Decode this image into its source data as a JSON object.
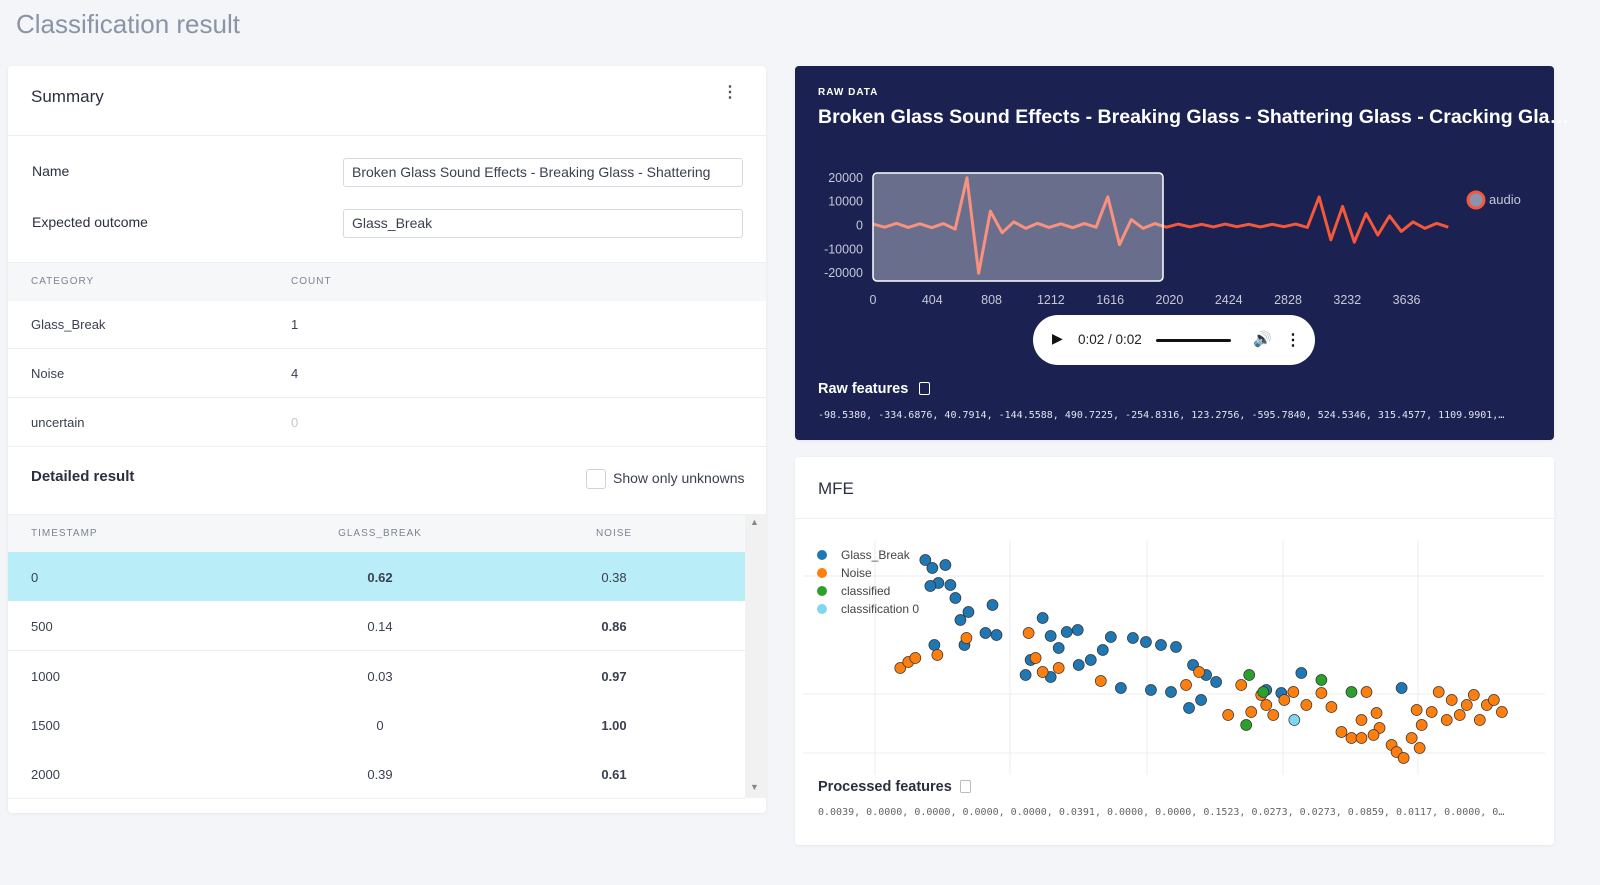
{
  "header": {
    "title": "Classification result"
  },
  "summary": {
    "title": "Summary",
    "fields": [
      {
        "label": "Name",
        "value": "Broken Glass Sound Effects - Breaking Glass - Shattering Glass"
      },
      {
        "label": "Expected outcome",
        "value": "Glass_Break"
      }
    ],
    "category_table": {
      "columns": [
        "CATEGORY",
        "COUNT"
      ],
      "rows": [
        [
          "Glass_Break",
          1
        ],
        [
          "Noise",
          4
        ],
        [
          "uncertain",
          0
        ]
      ]
    }
  },
  "detailed_result": {
    "title": "Detailed result",
    "checkbox_label": "Show only unknowns",
    "columns": [
      "TIMESTAMP",
      "GLASS_BREAK",
      "NOISE"
    ],
    "rows": [
      [
        0,
        "0.62",
        "0.38"
      ],
      [
        500,
        "0.14",
        "0.86"
      ],
      [
        1000,
        "0.03",
        "0.97"
      ],
      [
        1500,
        "0",
        "1.00"
      ],
      [
        2000,
        "0.39",
        "0.61"
      ]
    ]
  },
  "raw_data": {
    "label": "RAW DATA",
    "title": "Broken Glass Sound Effects - Breaking Glass - Shattering Glass - Cracking Gla…",
    "waveform": {
      "type": "line",
      "x": [
        0,
        80,
        160,
        240,
        320,
        400,
        480,
        560,
        640,
        720,
        800,
        880,
        960,
        1040,
        1120,
        1200,
        1280,
        1360,
        1440,
        1520,
        1600,
        1680,
        1760,
        1840,
        1920,
        2000,
        2080,
        2160,
        2240,
        2320,
        2400,
        2480,
        2560,
        2640,
        2720,
        2800,
        2880,
        2960,
        3040,
        3120,
        3200,
        3280,
        3360,
        3440,
        3520,
        3600,
        3680,
        3760,
        3840,
        3920
      ],
      "series": [
        {
          "name": "audio",
          "color": "#f4583a",
          "values": [
            600,
            -700,
            900,
            -800,
            700,
            -900,
            800,
            -1500,
            20000,
            -20000,
            6000,
            -3000,
            1500,
            -1200,
            900,
            -800,
            700,
            -900,
            800,
            -700,
            12000,
            -8000,
            2500,
            -1200,
            800,
            -700,
            600,
            -600,
            500,
            -600,
            600,
            -500,
            500,
            -600,
            500,
            -500,
            600,
            -800,
            12000,
            -6000,
            8000,
            -7000,
            5000,
            -4000,
            4000,
            -2500,
            1500,
            -1200,
            900,
            -700
          ]
        }
      ],
      "xlim": [
        0,
        4000
      ],
      "ylim": [
        -22000,
        22000
      ],
      "xticks": [
        0,
        404,
        808,
        1212,
        1616,
        2020,
        2424,
        2828,
        3232,
        3636
      ],
      "yticks": [
        20000,
        10000,
        0,
        -10000,
        -20000
      ]
    },
    "player": {
      "time": "0:02 / 0:02"
    },
    "raw_features": {
      "label": "Raw features",
      "values": "-98.5380, -334.6876, 40.7914, -144.5588, 490.7225, -254.8316, 123.2756, -595.7840, 524.5346, 315.4577, 1109.9901,…"
    }
  },
  "mfe": {
    "title": "MFE",
    "chart": {
      "type": "scatter",
      "xlim": [
        0,
        740
      ],
      "ylim": [
        0,
        235
      ],
      "series": [
        {
          "name": "Glass_Break",
          "color": "#1f77b4",
          "x": [
            122,
            129,
            142,
            135,
            147,
            127,
            152,
            165,
            189,
            157,
            182,
            193,
            131,
            161,
            239,
            247,
            263,
            274,
            307,
            329,
            342,
            357,
            372,
            255,
            227,
            275,
            287,
            299,
            222,
            247,
            317,
            347,
            367,
            389,
            402,
            412,
            397,
            385,
            462,
            477,
            497,
            597
          ],
          "y": [
            215,
            207,
            210,
            192,
            190,
            189,
            177,
            163,
            170,
            155,
            142,
            140,
            130,
            130,
            157,
            139,
            143,
            145,
            138,
            137,
            133,
            130,
            128,
            127,
            115,
            110,
            115,
            125,
            100,
            98,
            87,
            85,
            83,
            110,
            100,
            93,
            75,
            67,
            85,
            82,
            102,
            87
          ]
        },
        {
          "name": "Noise",
          "color": "#ff7f0e",
          "x": [
            97,
            105,
            112,
            134,
            163,
            225,
            232,
            239,
            255,
            297,
            382,
            395,
            437,
            424,
            447,
            462,
            469,
            480,
            489,
            502,
            517,
            527,
            537,
            547,
            557,
            562,
            572,
            575,
            587,
            592,
            599,
            607,
            612,
            617,
            627,
            634,
            642,
            647,
            655,
            662,
            669,
            675,
            682,
            689,
            697,
            569,
            557,
            615,
            457
          ],
          "y": [
            107,
            113,
            117,
            120,
            137,
            142,
            117,
            103,
            107,
            94,
            90,
            103,
            90,
            60,
            63,
            70,
            60,
            75,
            83,
            70,
            82,
            68,
            43,
            37,
            55,
            83,
            62,
            47,
            30,
            23,
            17,
            37,
            65,
            50,
            63,
            83,
            55,
            75,
            60,
            70,
            80,
            55,
            70,
            75,
            63,
            40,
            37,
            27,
            80
          ]
        },
        {
          "name": "classified",
          "color": "#2ca02c",
          "x": [
            445,
            517,
            547,
            442,
            459
          ],
          "y": [
            100,
            95,
            83,
            50,
            83
          ]
        },
        {
          "name": "classification 0",
          "color": "#7fd6f0",
          "x": [
            490
          ],
          "y": [
            55
          ]
        }
      ]
    },
    "processed_features": {
      "label": "Processed features",
      "values": "0.0039, 0.0000, 0.0000, 0.0000, 0.0000, 0.0391, 0.0000, 0.0000, 0.1523, 0.0273, 0.0273, 0.0859, 0.0117, 0.0000, 0…"
    }
  }
}
